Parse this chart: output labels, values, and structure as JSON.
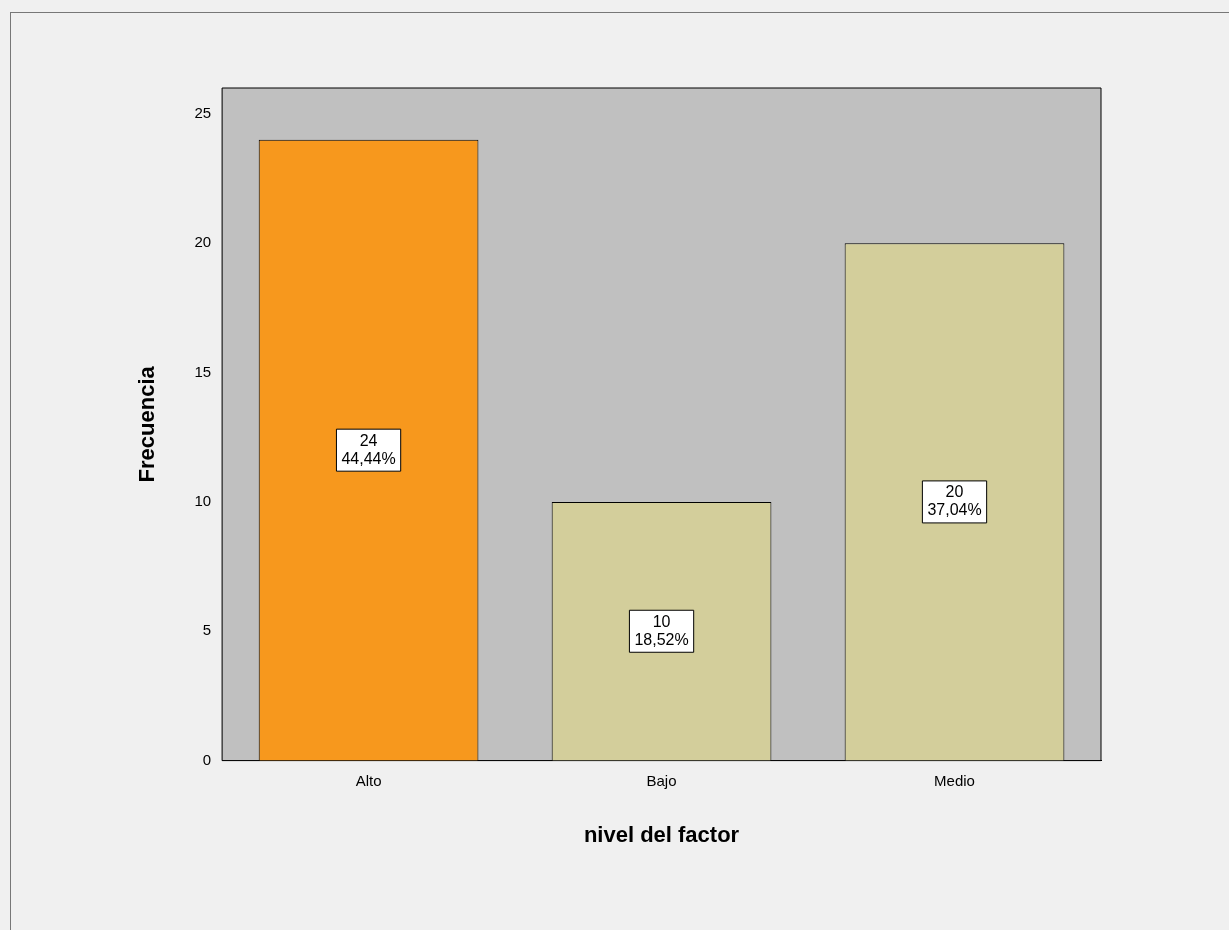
{
  "chart_data": {
    "type": "bar",
    "xlabel": "nivel del factor",
    "ylabel": "Frecuencia",
    "categories": [
      "Alto",
      "Bajo",
      "Medio"
    ],
    "values": [
      24,
      10,
      20
    ],
    "colors": [
      "#f7981d",
      "#d3ce9b",
      "#d3ce9b"
    ],
    "value_labels": [
      "24\n44,44%",
      "10\n18,52%",
      "20\n37,04%"
    ],
    "ylim": [
      0,
      26
    ],
    "yticks": [
      0,
      5,
      10,
      15,
      20,
      25
    ],
    "grid": false,
    "legend": false
  }
}
